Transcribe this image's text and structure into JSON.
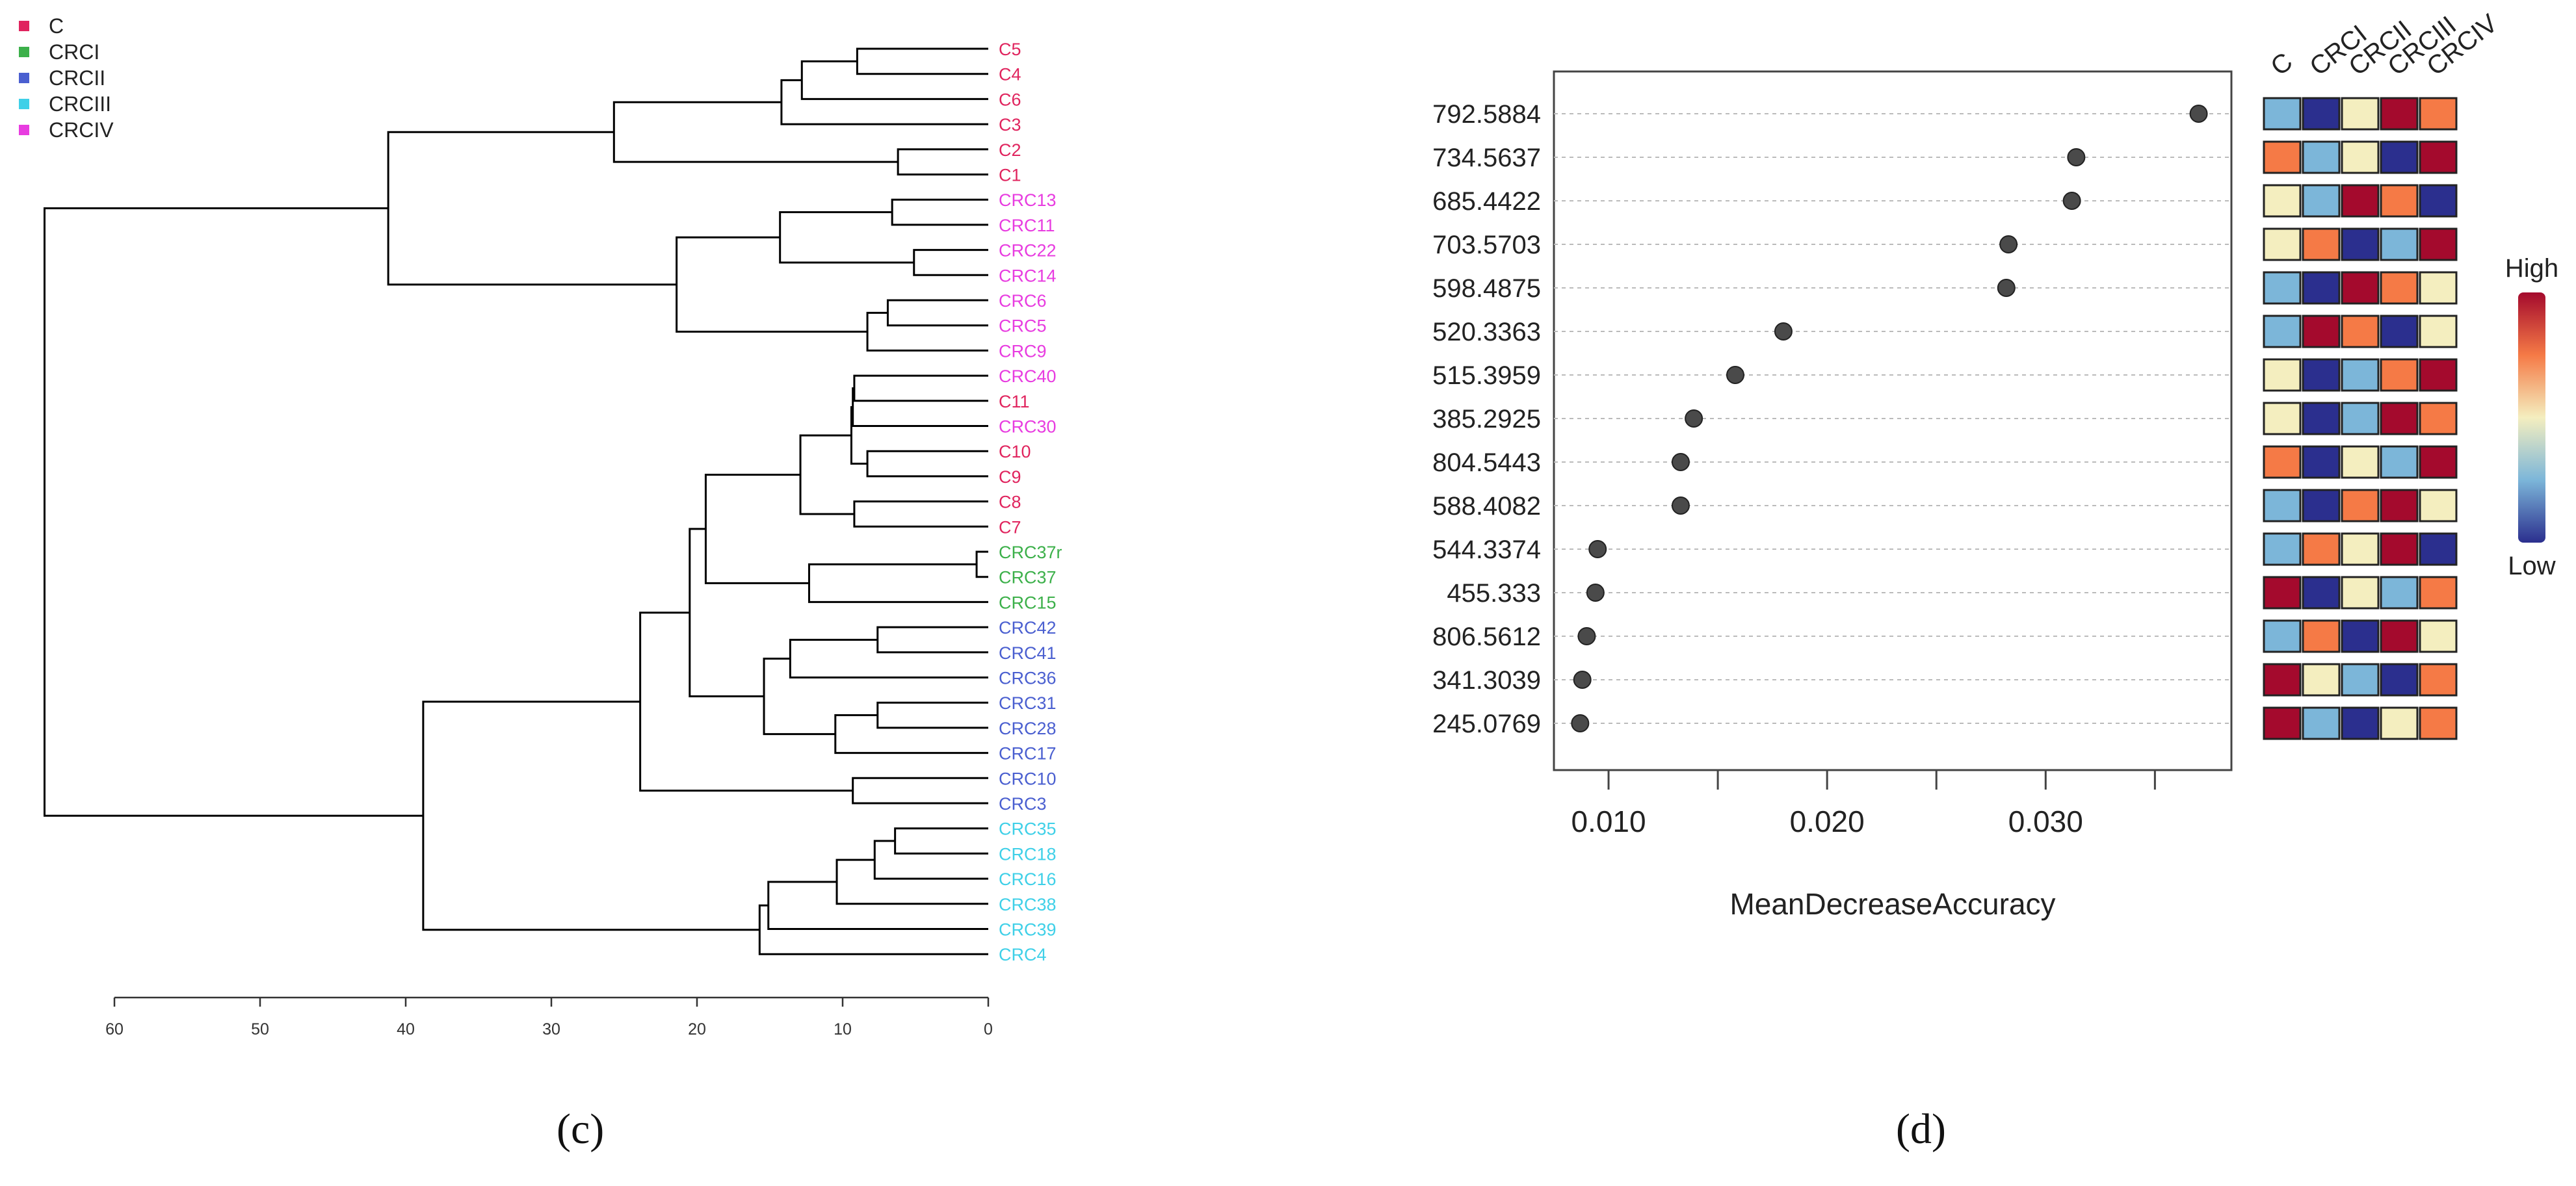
{
  "panel_c": {
    "label": "(c)",
    "legend": [
      {
        "name": "C",
        "color": "#e0245e"
      },
      {
        "name": "CRCI",
        "color": "#3cb04a"
      },
      {
        "name": "CRCII",
        "color": "#4a5fd0"
      },
      {
        "name": "CRCIII",
        "color": "#3fd0e8"
      },
      {
        "name": "CRCIV",
        "color": "#e83ce0"
      }
    ],
    "axis_ticks": [
      "60",
      "50",
      "40",
      "30",
      "20",
      "10",
      "0"
    ],
    "leaves": [
      {
        "name": "C5",
        "group": "C"
      },
      {
        "name": "C4",
        "group": "C"
      },
      {
        "name": "C6",
        "group": "C"
      },
      {
        "name": "C3",
        "group": "C"
      },
      {
        "name": "C2",
        "group": "C"
      },
      {
        "name": "C1",
        "group": "C"
      },
      {
        "name": "CRC13",
        "group": "CRCIV"
      },
      {
        "name": "CRC11",
        "group": "CRCIV"
      },
      {
        "name": "CRC22",
        "group": "CRCIV"
      },
      {
        "name": "CRC14",
        "group": "CRCIV"
      },
      {
        "name": "CRC6",
        "group": "CRCIV"
      },
      {
        "name": "CRC5",
        "group": "CRCIV"
      },
      {
        "name": "CRC9",
        "group": "CRCIV"
      },
      {
        "name": "CRC40",
        "group": "CRCIV"
      },
      {
        "name": "C11",
        "group": "C"
      },
      {
        "name": "CRC30",
        "group": "CRCIV"
      },
      {
        "name": "C10",
        "group": "C"
      },
      {
        "name": "C9",
        "group": "C"
      },
      {
        "name": "C8",
        "group": "C"
      },
      {
        "name": "C7",
        "group": "C"
      },
      {
        "name": "CRC37r",
        "group": "CRCI"
      },
      {
        "name": "CRC37",
        "group": "CRCI"
      },
      {
        "name": "CRC15",
        "group": "CRCI"
      },
      {
        "name": "CRC42",
        "group": "CRCII"
      },
      {
        "name": "CRC41",
        "group": "CRCII"
      },
      {
        "name": "CRC36",
        "group": "CRCII"
      },
      {
        "name": "CRC31",
        "group": "CRCII"
      },
      {
        "name": "CRC28",
        "group": "CRCII"
      },
      {
        "name": "CRC17",
        "group": "CRCII"
      },
      {
        "name": "CRC10",
        "group": "CRCII"
      },
      {
        "name": "CRC3",
        "group": "CRCII"
      },
      {
        "name": "CRC35",
        "group": "CRCIII"
      },
      {
        "name": "CRC18",
        "group": "CRCIII"
      },
      {
        "name": "CRC16",
        "group": "CRCIII"
      },
      {
        "name": "CRC38",
        "group": "CRCIII"
      },
      {
        "name": "CRC39",
        "group": "CRCIII"
      },
      {
        "name": "CRC4",
        "group": "CRCIII"
      }
    ]
  },
  "chart_data": [
    {
      "type": "dendrogram",
      "title": "",
      "xlabel": "",
      "xlim": [
        60,
        0
      ],
      "merges": [
        {
          "a": "C5",
          "b": "C4",
          "height": 9
        },
        {
          "a": "n1",
          "b": "C6",
          "height": 12.8
        },
        {
          "a": "n2",
          "b": "C3",
          "height": 14.2
        },
        {
          "a": "C2",
          "b": "C1",
          "height": 6.2
        },
        {
          "a": "n3",
          "b": "n4",
          "height": 25.7
        },
        {
          "a": "CRC13",
          "b": "CRC11",
          "height": 6.6
        },
        {
          "a": "CRC22",
          "b": "CRC14",
          "height": 5.1
        },
        {
          "a": "n6",
          "b": "n7",
          "height": 14.3
        },
        {
          "a": "CRC6",
          "b": "CRC5",
          "height": 6.9
        },
        {
          "a": "n9",
          "b": "CRC9",
          "height": 8.3
        },
        {
          "a": "n8",
          "b": "n10",
          "height": 21.4
        },
        {
          "a": "n5",
          "b": "n11",
          "height": 41.2
        },
        {
          "a": "CRC40",
          "b": "C11",
          "height": 9.2
        },
        {
          "a": "n13",
          "b": "CRC30",
          "height": 9.3
        },
        {
          "a": "C10",
          "b": "C9",
          "height": 8.3
        },
        {
          "a": "n14",
          "b": "n15",
          "height": 9.4
        },
        {
          "a": "C8",
          "b": "C7",
          "height": 9.2
        },
        {
          "a": "n16",
          "b": "n17",
          "height": 12.9
        },
        {
          "a": "CRC37r",
          "b": "CRC37",
          "height": 0.8
        },
        {
          "a": "n19",
          "b": "CRC15",
          "height": 12.3
        },
        {
          "a": "n18",
          "b": "n20",
          "height": 19.4
        },
        {
          "a": "CRC42",
          "b": "CRC41",
          "height": 7.6
        },
        {
          "a": "n22",
          "b": "CRC36",
          "height": 13.6
        },
        {
          "a": "CRC31",
          "b": "CRC28",
          "height": 7.6
        },
        {
          "a": "n24",
          "b": "CRC17",
          "height": 10.5
        },
        {
          "a": "n23",
          "b": "n25",
          "height": 15.4
        },
        {
          "a": "n21",
          "b": "n26",
          "height": 20.5
        },
        {
          "a": "CRC10",
          "b": "CRC3",
          "height": 9.3
        },
        {
          "a": "n27",
          "b": "n28",
          "height": 23.9
        },
        {
          "a": "CRC35",
          "b": "CRC18",
          "height": 6.4
        },
        {
          "a": "n30",
          "b": "CRC16",
          "height": 7.8
        },
        {
          "a": "n31",
          "b": "CRC38",
          "height": 10.4
        },
        {
          "a": "n32",
          "b": "CRC39",
          "height": 15.1
        },
        {
          "a": "n33",
          "b": "CRC4",
          "height": 15.7
        },
        {
          "a": "n29",
          "b": "n34",
          "height": 38.8
        },
        {
          "a": "n12",
          "b": "n35",
          "height": 64.8
        }
      ]
    },
    {
      "type": "scatter",
      "title": "",
      "xlabel": "MeanDecreaseAccuracy",
      "ylabel": "",
      "xlim": [
        0.0075,
        0.0385
      ],
      "xticks": [
        0.01,
        0.02,
        0.03
      ],
      "xtick_labels": [
        "0.010",
        "0.020",
        "0.030"
      ],
      "minor_xticks": [
        0.015,
        0.025,
        0.035
      ],
      "categories": [
        "792.5884",
        "734.5637",
        "685.4422",
        "703.5703",
        "598.4875",
        "520.3363",
        "515.3959",
        "385.2925",
        "804.5443",
        "588.4082",
        "544.3374",
        "455.333",
        "806.5612",
        "341.3039",
        "245.0769"
      ],
      "values": [
        0.037,
        0.0314,
        0.0312,
        0.0283,
        0.0282,
        0.018,
        0.0158,
        0.0139,
        0.0133,
        0.0133,
        0.0095,
        0.0094,
        0.009,
        0.0088,
        0.0087
      ]
    },
    {
      "type": "heatmap",
      "columns": [
        "C",
        "CRCI",
        "CRCII",
        "CRCIII",
        "CRCIV"
      ],
      "rows": [
        "792.5884",
        "734.5637",
        "685.4422",
        "703.5703",
        "598.4875",
        "520.3363",
        "515.3959",
        "385.2925",
        "804.5443",
        "588.4082",
        "544.3374",
        "455.333",
        "806.5612",
        "341.3039",
        "245.0769"
      ],
      "levels": [
        [
          2,
          1,
          3,
          5,
          4
        ],
        [
          4,
          2,
          3,
          1,
          5
        ],
        [
          3,
          2,
          5,
          4,
          1
        ],
        [
          3,
          4,
          1,
          2,
          5
        ],
        [
          2,
          1,
          5,
          4,
          3
        ],
        [
          2,
          5,
          4,
          1,
          3
        ],
        [
          3,
          1,
          2,
          4,
          5
        ],
        [
          3,
          1,
          2,
          5,
          4
        ],
        [
          4,
          1,
          3,
          2,
          5
        ],
        [
          2,
          1,
          4,
          5,
          3
        ],
        [
          2,
          4,
          3,
          5,
          1
        ],
        [
          5,
          1,
          3,
          2,
          4
        ],
        [
          2,
          4,
          1,
          5,
          3
        ],
        [
          5,
          3,
          2,
          1,
          4
        ],
        [
          5,
          2,
          1,
          3,
          4
        ]
      ],
      "level_colors": [
        "#2b2f8e",
        "#7cb6d9",
        "#f4eebf",
        "#f57a46",
        "#a40a2d"
      ],
      "legend_high": "High",
      "legend_low": "Low"
    }
  ],
  "panel_d": {
    "label": "(d)"
  }
}
